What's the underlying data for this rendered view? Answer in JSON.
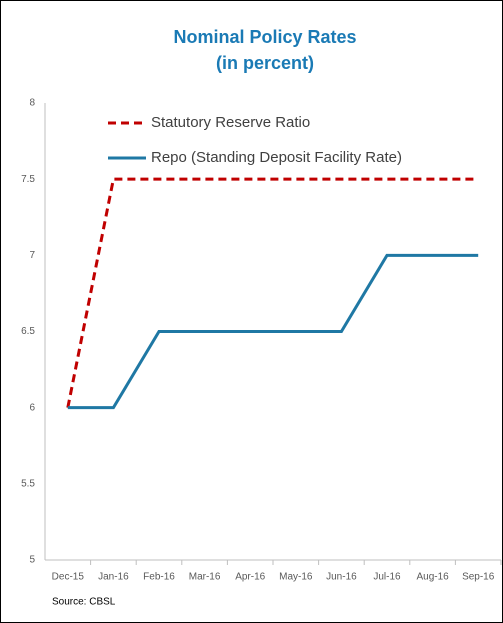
{
  "chart_data": {
    "type": "line",
    "title": "Nominal Policy Rates",
    "subtitle": "(in percent)",
    "source": "Source: CBSL",
    "categories": [
      "Dec-15",
      "Jan-16",
      "Feb-16",
      "Mar-16",
      "Apr-16",
      "May-16",
      "Jun-16",
      "Jul-16",
      "Aug-16",
      "Sep-16"
    ],
    "series": [
      {
        "name": "Statutory Reserve Ratio",
        "color": "#c00000",
        "dashed": true,
        "values": [
          6,
          7.5,
          7.5,
          7.5,
          7.5,
          7.5,
          7.5,
          7.5,
          7.5,
          7.5
        ]
      },
      {
        "name": "Repo (Standing Deposit Facility Rate)",
        "color": "#1f78a4",
        "dashed": false,
        "values": [
          6,
          6,
          6.5,
          6.5,
          6.5,
          6.5,
          6.5,
          7,
          7,
          7
        ]
      }
    ],
    "ylim": [
      5,
      8
    ],
    "yticks": [
      5,
      5.5,
      6,
      6.5,
      7,
      7.5,
      8
    ],
    "grid": false,
    "legend": "top-left"
  }
}
